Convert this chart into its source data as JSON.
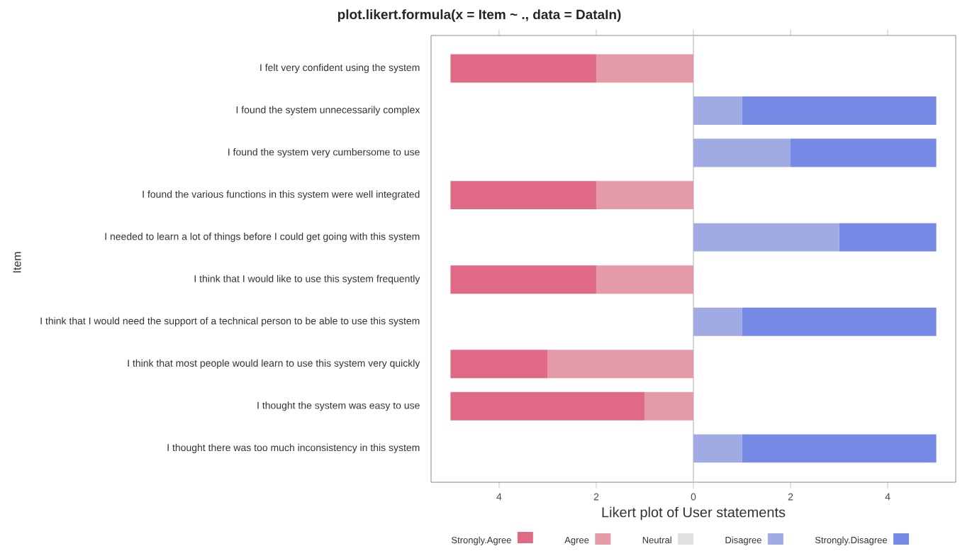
{
  "chart_data": {
    "type": "bar",
    "orientation": "horizontal",
    "stacked": true,
    "title": "plot.likert.formula(x = Item ~ ., data = DataIn)",
    "xlabel": "Likert plot of User statements",
    "ylabel": "Item",
    "categories": [
      "I felt very confident using the system",
      "I found the system unnecessarily complex",
      "I found the system very cumbersome to use",
      "I found the various functions in this system were well integrated",
      "I needed to learn a lot of things before I could get going with this system",
      "I think that I would like to use this system frequently",
      "I think that I would need the support of a technical person to  be able to use this system",
      "I think that most people would learn to use this system very quickly",
      "I thought the system was easy to use",
      "I thought there was too much inconsistency in this system"
    ],
    "series": [
      {
        "name": "Strongly.Agree",
        "color": "#e06a85",
        "values": [
          -3,
          0,
          0,
          -3,
          0,
          -3,
          0,
          -2,
          -4,
          0
        ]
      },
      {
        "name": "Agree",
        "color": "#e59aa8",
        "values": [
          -2,
          0,
          0,
          -2,
          0,
          -2,
          0,
          -3,
          -1,
          0
        ]
      },
      {
        "name": "Neutral",
        "color": "#e0e0e0",
        "values": [
          0,
          0,
          0,
          0,
          0,
          0,
          0,
          0,
          0,
          0
        ]
      },
      {
        "name": "Disagree",
        "color": "#a0aae3",
        "values": [
          0,
          1,
          2,
          0,
          3,
          0,
          1,
          0,
          0,
          1
        ]
      },
      {
        "name": "Strongly.Disagree",
        "color": "#7689e4",
        "values": [
          0,
          4,
          3,
          0,
          2,
          0,
          4,
          0,
          0,
          4
        ]
      }
    ],
    "xlim": [
      -5.4,
      5.4
    ],
    "xticks": [
      {
        "value": -4,
        "label": "4"
      },
      {
        "value": -2,
        "label": "2"
      },
      0,
      2,
      4
    ],
    "ref_lines": [
      {
        "axis": "x",
        "value": 0,
        "color": "#cccccc"
      }
    ],
    "legend": "bottom"
  }
}
